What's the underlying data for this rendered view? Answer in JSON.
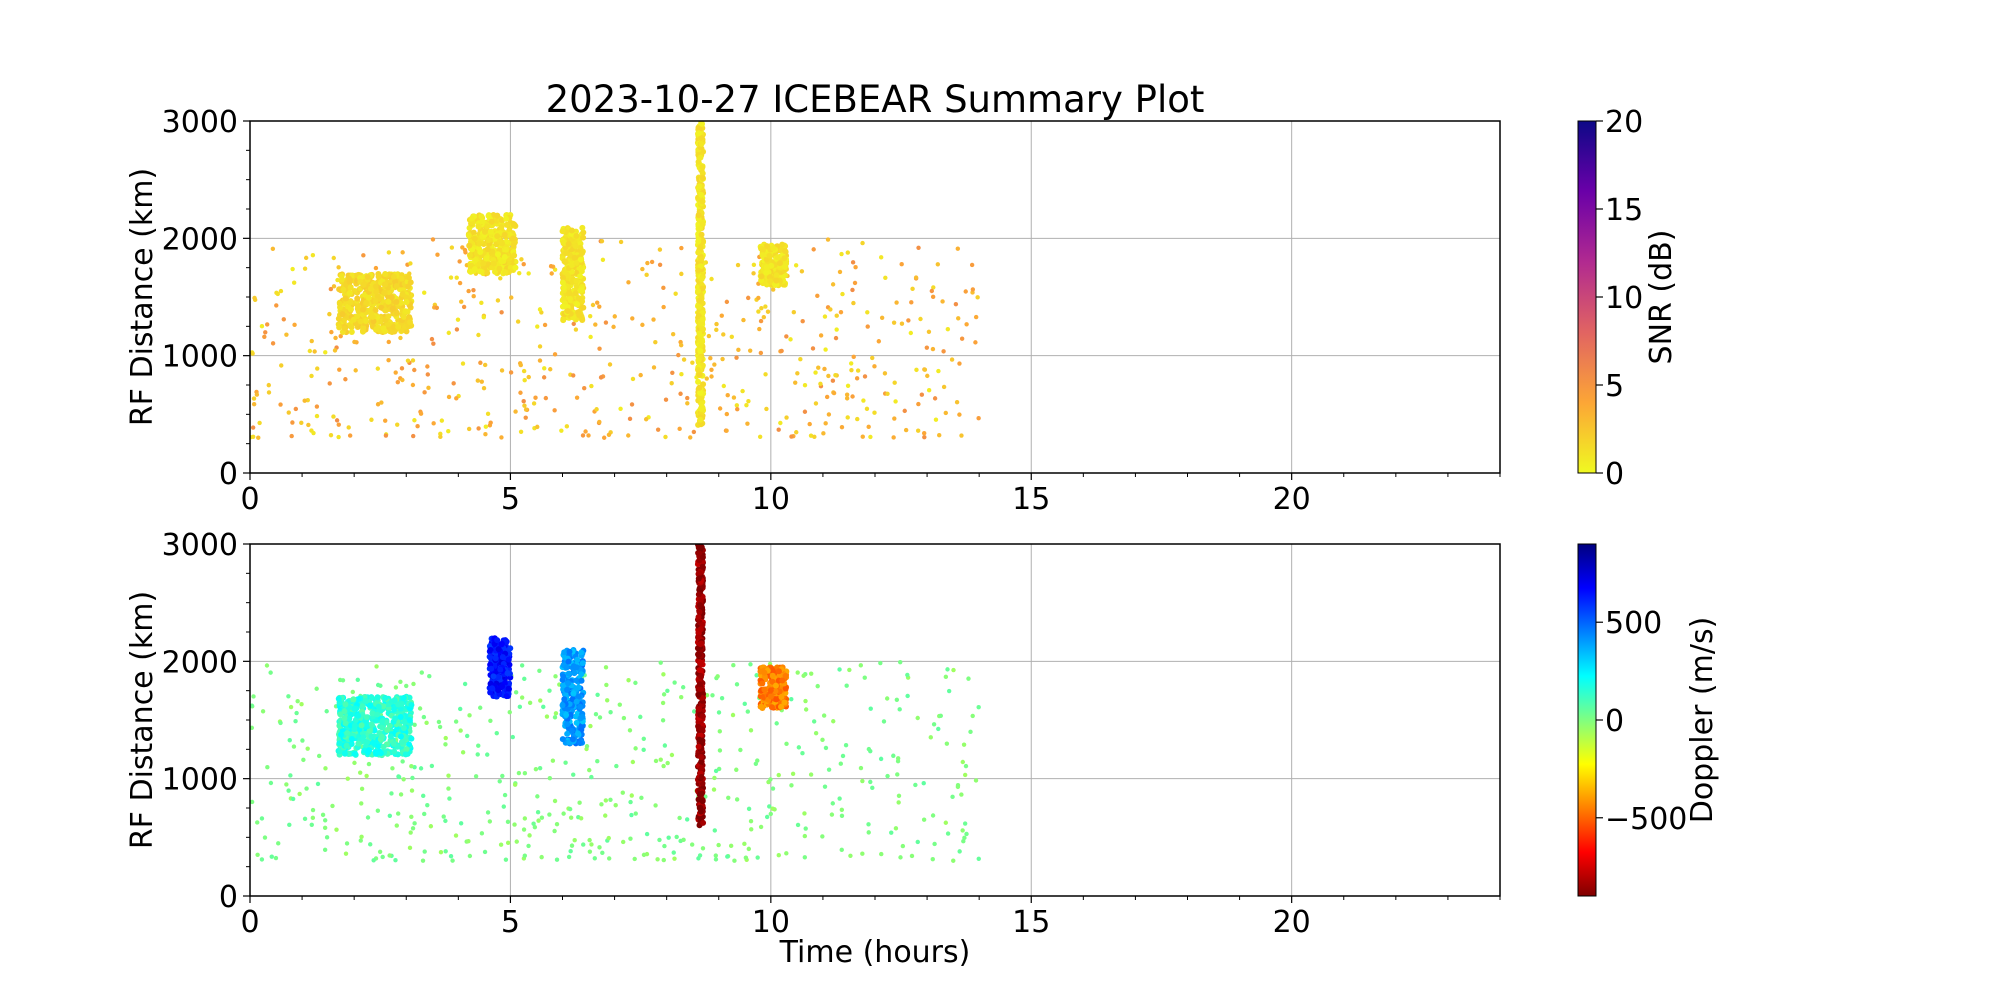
{
  "figure": {
    "title": "2023-10-27 ICEBEAR Summary Plot"
  },
  "chart_data": [
    {
      "type": "scatter",
      "panel": "top",
      "title": "2023-10-27 ICEBEAR Summary Plot",
      "xlabel": "",
      "ylabel": "RF Distance (km)",
      "xlim": [
        0,
        24
      ],
      "ylim": [
        0,
        3000
      ],
      "x_ticks": [
        0,
        5,
        10,
        15,
        20
      ],
      "y_ticks": [
        0,
        1000,
        2000,
        3000
      ],
      "grid": true,
      "color_variable": "SNR",
      "colorbar": {
        "label": "SNR (dB)",
        "range": [
          0,
          20
        ],
        "ticks": [
          0,
          5,
          10,
          15,
          20
        ],
        "colormap": "plasma_r",
        "colors": [
          "#f0f921",
          "#fca636",
          "#e16462",
          "#b12a90",
          "#6a00a8",
          "#0d0887"
        ]
      },
      "clusters": [
        {
          "x_range": [
            1.7,
            3.1
          ],
          "y_range": [
            1200,
            1700
          ],
          "value": 1.5
        },
        {
          "x_range": [
            4.2,
            5.1
          ],
          "y_range": [
            1700,
            2200
          ],
          "value": 1.0
        },
        {
          "x_range": [
            6.0,
            6.4
          ],
          "y_range": [
            1300,
            2100
          ],
          "value": 1.0
        },
        {
          "x_range": [
            8.6,
            8.7
          ],
          "y_range": [
            400,
            3000
          ],
          "value": 1.0
        },
        {
          "x_range": [
            9.8,
            10.3
          ],
          "y_range": [
            1600,
            1950
          ],
          "value": 1.0
        }
      ],
      "scatter_extent": {
        "x_range": [
          0,
          14
        ],
        "y_range": [
          300,
          2000
        ],
        "typical_value": 3
      }
    },
    {
      "type": "scatter",
      "panel": "bottom",
      "title": "",
      "xlabel": "Time (hours)",
      "ylabel": "RF Distance (km)",
      "xlim": [
        0,
        24
      ],
      "ylim": [
        0,
        3000
      ],
      "x_ticks": [
        0,
        5,
        10,
        15,
        20
      ],
      "y_ticks": [
        0,
        1000,
        2000,
        3000
      ],
      "grid": true,
      "color_variable": "Doppler",
      "colorbar": {
        "label": "Doppler (m/s)",
        "range": [
          -900,
          900
        ],
        "ticks": [
          -500,
          0,
          500
        ],
        "tick_labels": [
          "−500",
          "0",
          "500"
        ],
        "colormap": "jet_r",
        "colors": [
          "#7f0000",
          "#ff0000",
          "#ff8000",
          "#ffff00",
          "#80ff80",
          "#00ffff",
          "#0080ff",
          "#0000ff",
          "#00007f"
        ]
      },
      "clusters": [
        {
          "x_range": [
            1.7,
            3.1
          ],
          "y_range": [
            1200,
            1700
          ],
          "value": 150
        },
        {
          "x_range": [
            4.6,
            5.0
          ],
          "y_range": [
            1700,
            2200
          ],
          "value": 650
        },
        {
          "x_range": [
            6.0,
            6.4
          ],
          "y_range": [
            1300,
            2100
          ],
          "value": 400
        },
        {
          "x_range": [
            8.6,
            8.7
          ],
          "y_range": [
            600,
            3000
          ],
          "value": -850
        },
        {
          "x_range": [
            9.8,
            10.3
          ],
          "y_range": [
            1600,
            1950
          ],
          "value": -450
        }
      ],
      "scatter_extent": {
        "x_range": [
          0,
          14
        ],
        "y_range": [
          300,
          2000
        ],
        "typical_value": 0
      }
    }
  ]
}
